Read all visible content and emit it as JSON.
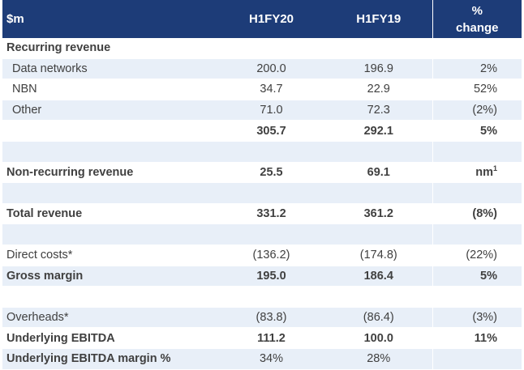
{
  "header": {
    "label": "$m",
    "col_a": "H1FY20",
    "col_b": "H1FY19",
    "col_c_line1": "%",
    "col_c_line2": "change"
  },
  "rows": [
    {
      "label": "Recurring revenue",
      "a": "",
      "b": "",
      "c": "",
      "bold": true,
      "shade": false,
      "indent": false
    },
    {
      "label": "Data networks",
      "a": "200.0",
      "b": "196.9",
      "c": "2%",
      "bold": false,
      "shade": true,
      "indent": true
    },
    {
      "label": "NBN",
      "a": "34.7",
      "b": "22.9",
      "c": "52%",
      "bold": false,
      "shade": false,
      "indent": true
    },
    {
      "label": "Other",
      "a": "71.0",
      "b": "72.3",
      "c": "(2%)",
      "bold": false,
      "shade": true,
      "indent": true
    },
    {
      "label": "",
      "a": "305.7",
      "b": "292.1",
      "c": "5%",
      "bold": true,
      "shade": false,
      "indent": false
    },
    {
      "label": "",
      "a": "",
      "b": "",
      "c": "",
      "bold": false,
      "shade": true,
      "indent": false
    },
    {
      "label": "Non-recurring revenue",
      "a": "25.5",
      "b": "69.1",
      "c": "nm",
      "c_sup": "1",
      "bold": true,
      "shade": false,
      "indent": false
    },
    {
      "label": "",
      "a": "",
      "b": "",
      "c": "",
      "bold": false,
      "shade": true,
      "indent": false
    },
    {
      "label": "Total revenue",
      "a": "331.2",
      "b": "361.2",
      "c": "(8%)",
      "bold": true,
      "shade": false,
      "indent": false
    },
    {
      "label": "",
      "a": "",
      "b": "",
      "c": "",
      "bold": false,
      "shade": true,
      "indent": false
    },
    {
      "label": "Direct costs*",
      "a": "(136.2)",
      "b": "(174.8)",
      "c": "(22%)",
      "bold": false,
      "shade": false,
      "indent": false
    },
    {
      "label": "Gross margin",
      "a": "195.0",
      "b": "186.4",
      "c": "5%",
      "bold": true,
      "shade": true,
      "indent": false
    },
    {
      "label": "",
      "a": "",
      "b": "",
      "c": "",
      "bold": false,
      "shade": false,
      "indent": false
    },
    {
      "label": "Overheads*",
      "a": "(83.8)",
      "b": "(86.4)",
      "c": "(3%)",
      "bold": false,
      "shade": true,
      "indent": false
    },
    {
      "label": "Underlying EBITDA",
      "a": "111.2",
      "b": "100.0",
      "c": "11%",
      "bold": true,
      "shade": false,
      "indent": false
    },
    {
      "label": "Underlying EBITDA margin %",
      "a": "34%",
      "b": "28%",
      "c": "",
      "bold": true,
      "shade": true,
      "indent": false,
      "values_bold": false
    }
  ]
}
